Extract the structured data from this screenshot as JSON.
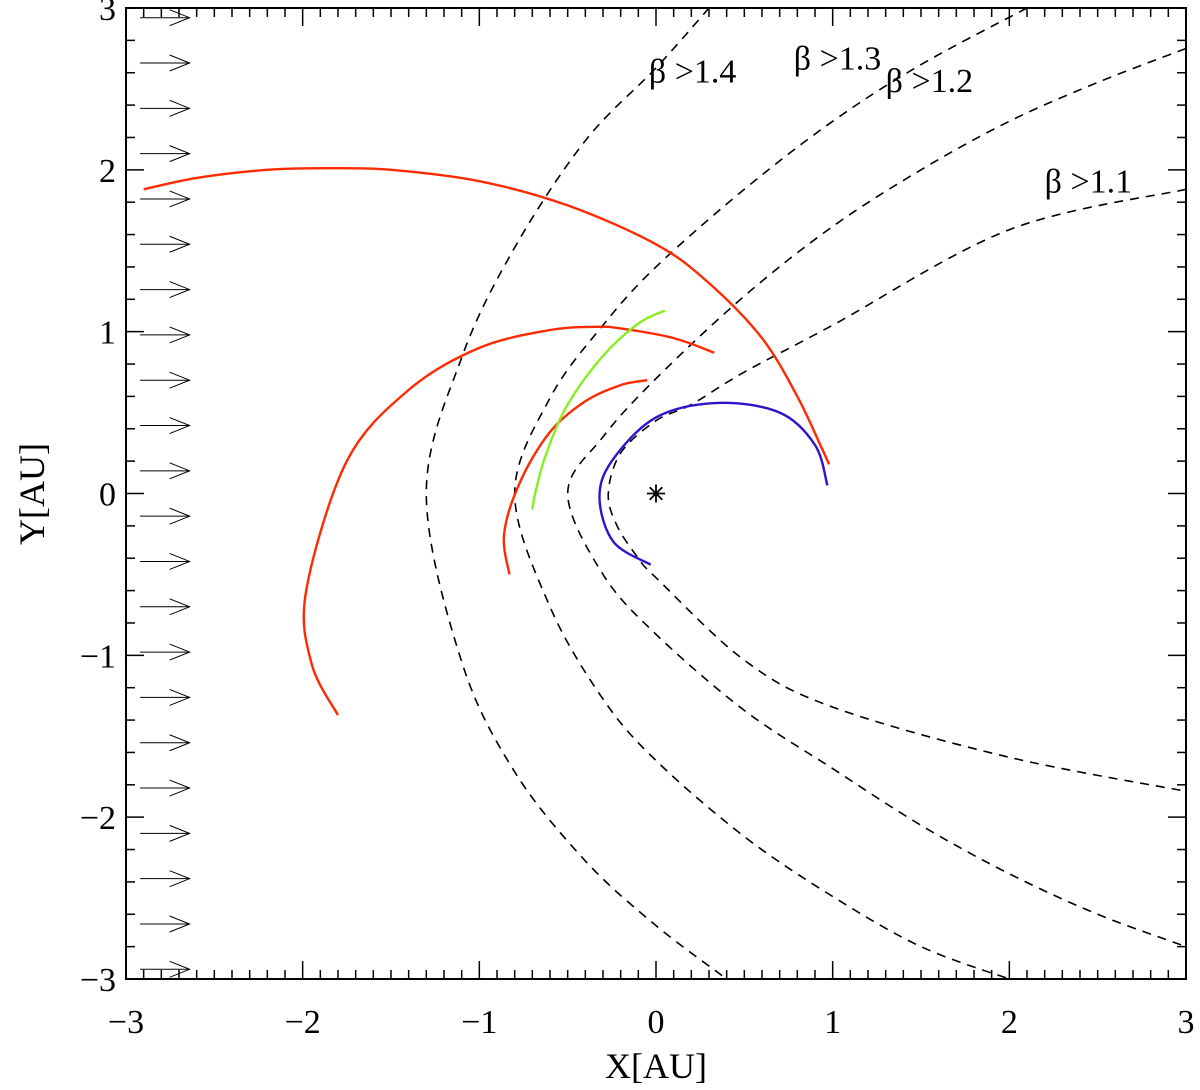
{
  "chart_data": {
    "type": "line",
    "xlabel": "X[AU]",
    "ylabel": "Y[AU]",
    "xlim": [
      -3,
      3
    ],
    "ylim": [
      -3,
      3
    ],
    "x_ticks": [
      -3,
      -2,
      -1,
      0,
      1,
      2,
      3
    ],
    "y_ticks": [
      -3,
      -2,
      -1,
      0,
      1,
      2,
      3
    ],
    "x_tick_labels": [
      "−3",
      "−2",
      "−1",
      "0",
      "1",
      "2",
      "3"
    ],
    "y_tick_labels": [
      "−3",
      "−2",
      "−1",
      "0",
      "1",
      "2",
      "3"
    ],
    "grid": false,
    "sun": {
      "x": 0,
      "y": 0,
      "symbol": "*"
    },
    "flow_arrows": {
      "x_start": -2.92,
      "x_end": -2.64,
      "y_values": [
        2.94,
        2.66,
        2.38,
        2.1,
        1.82,
        1.54,
        1.26,
        0.98,
        0.7,
        0.42,
        0.14,
        -0.14,
        -0.42,
        -0.7,
        -0.98,
        -1.26,
        -1.54,
        -1.82,
        -2.1,
        -2.38,
        -2.66,
        -2.94
      ]
    },
    "boundaries": [
      {
        "label": "β >1.1",
        "label_pos": [
          2.2,
          1.86
        ],
        "x": [
          3.0,
          2.0,
          1.0,
          0.5,
          0.2,
          0.0,
          -0.2,
          -0.27,
          -0.22,
          -0.1,
          0.0,
          0.5,
          1.0,
          2.0,
          3.0
        ],
        "y": [
          1.88,
          1.63,
          1.04,
          0.75,
          0.55,
          0.45,
          0.25,
          0.0,
          -0.2,
          -0.4,
          -0.52,
          -1.03,
          -1.32,
          -1.63,
          -1.84
        ]
      },
      {
        "label": "β >1.2",
        "label_pos": [
          1.3,
          2.48
        ],
        "x": [
          3.0,
          2.5,
          2.0,
          1.5,
          1.0,
          0.5,
          0.0,
          -0.3,
          -0.5,
          -0.3,
          0.0,
          0.5,
          1.0,
          1.5,
          2.0,
          2.5,
          3.0
        ],
        "y": [
          2.75,
          2.54,
          2.3,
          2.0,
          1.65,
          1.22,
          0.71,
          0.35,
          0.0,
          -0.5,
          -0.87,
          -1.34,
          -1.7,
          -2.05,
          -2.35,
          -2.6,
          -2.8
        ]
      },
      {
        "label": "β >1.3",
        "label_pos": [
          0.78,
          2.62
        ],
        "x": [
          2.1,
          1.5,
          1.0,
          0.5,
          0.0,
          -0.3,
          -0.6,
          -0.8,
          -0.6,
          -0.3,
          0.0,
          0.5,
          1.0,
          1.5,
          2.0
        ],
        "y": [
          3.0,
          2.65,
          2.3,
          1.88,
          1.4,
          1.04,
          0.59,
          0.0,
          -0.7,
          -1.27,
          -1.65,
          -2.12,
          -2.49,
          -2.8,
          -3.0
        ]
      },
      {
        "label": "β >1.4",
        "label_pos": [
          -0.04,
          2.54
        ],
        "x": [
          0.3,
          0.0,
          -0.4,
          -0.8,
          -1.1,
          -1.3,
          -1.1,
          -0.8,
          -0.4,
          0.0,
          0.4
        ],
        "y": [
          3.0,
          2.63,
          2.18,
          1.52,
          0.84,
          0.0,
          -1.04,
          -1.72,
          -2.27,
          -2.67,
          -3.0
        ]
      }
    ],
    "series": [
      {
        "color": "#ff2a00",
        "x": [
          -2.9,
          -2.6,
          -2.2,
          -1.85,
          -1.5,
          -1.0,
          -0.5,
          0.0,
          0.3,
          0.6,
          0.8,
          0.93,
          0.98
        ],
        "y": [
          1.88,
          1.95,
          2.0,
          2.01,
          2.0,
          1.93,
          1.78,
          1.54,
          1.3,
          0.96,
          0.6,
          0.3,
          0.18
        ]
      },
      {
        "color": "#ff2a00",
        "x": [
          0.33,
          0.1,
          -0.2,
          -0.34,
          -0.6,
          -1.0,
          -1.4,
          -1.75,
          -1.98,
          -1.95,
          -1.8
        ],
        "y": [
          0.87,
          0.96,
          1.02,
          1.03,
          1.01,
          0.9,
          0.64,
          0.2,
          -0.6,
          -1.05,
          -1.37
        ]
      },
      {
        "color": "#ff2a00",
        "x": [
          -0.05,
          -0.2,
          -0.4,
          -0.6,
          -0.77,
          -0.86,
          -0.83
        ],
        "y": [
          0.7,
          0.67,
          0.57,
          0.38,
          0.07,
          -0.25,
          -0.5
        ]
      },
      {
        "color": "#88ee22",
        "x": [
          0.05,
          -0.1,
          -0.3,
          -0.5,
          -0.62,
          -0.68,
          -0.7
        ],
        "y": [
          1.13,
          1.05,
          0.85,
          0.55,
          0.25,
          0.02,
          -0.1
        ]
      },
      {
        "color": "#3311cc",
        "x": [
          0.97,
          0.9,
          0.7,
          0.35,
          0.0,
          -0.25,
          -0.32,
          -0.24,
          -0.03
        ],
        "y": [
          0.05,
          0.3,
          0.5,
          0.56,
          0.47,
          0.2,
          -0.03,
          -0.3,
          -0.44
        ]
      }
    ]
  }
}
